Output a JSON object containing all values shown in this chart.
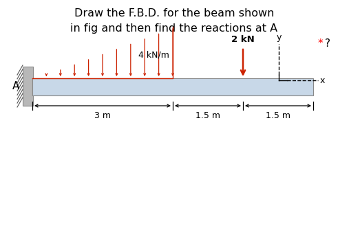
{
  "title_line1": "Draw the F.B.D. for the beam shown",
  "title_line2": "in fig and then find the reactions at A",
  "star_question": "* ?",
  "beam_color": "#c8d8e8",
  "dist_load_color": "#cc2200",
  "background_color": "#ffffff",
  "load_label": "4 kN/m",
  "point_load_label": "2 kN",
  "dim_3m_label": "3 m",
  "dim_15m_label1": "1.5 m",
  "dim_15m_label2": "1.5 m",
  "wall_color": "#b8b8b8",
  "coord_color": "#444444"
}
